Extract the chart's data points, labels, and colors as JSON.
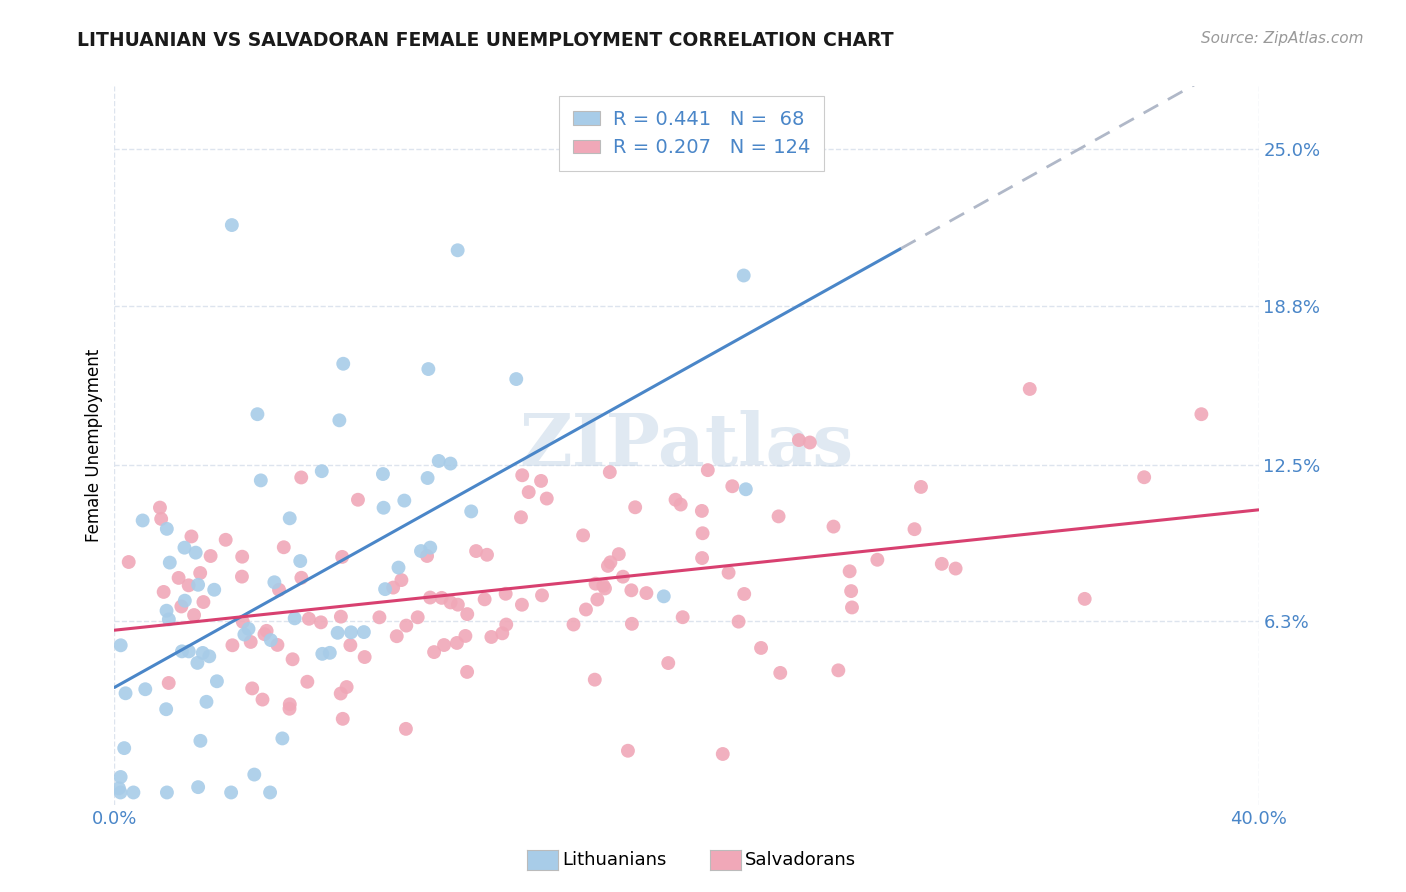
{
  "title": "LITHUANIAN VS SALVADORAN FEMALE UNEMPLOYMENT CORRELATION CHART",
  "source": "Source: ZipAtlas.com",
  "ylabel": "Female Unemployment",
  "xlim": [
    0.0,
    0.4
  ],
  "ylim": [
    -0.01,
    0.275
  ],
  "blue_R": 0.441,
  "blue_N": 68,
  "pink_R": 0.207,
  "pink_N": 124,
  "blue_color": "#a8cce8",
  "pink_color": "#f0a8b8",
  "blue_edge": "#7ab0d8",
  "pink_edge": "#e080a0",
  "trend_blue": "#4a86c8",
  "trend_pink": "#d84070",
  "trend_gray": "#b0b8c8",
  "background_color": "#ffffff",
  "grid_color": "#dde4ee",
  "legend_text_color": "#4a86c8",
  "ytick_vals": [
    0.063,
    0.125,
    0.188,
    0.25
  ],
  "ytick_labels": [
    "6.3%",
    "12.5%",
    "18.8%",
    "25.0%"
  ],
  "xtick_vals": [
    0.0,
    0.4
  ],
  "xtick_labels": [
    "0.0%",
    "40.0%"
  ]
}
